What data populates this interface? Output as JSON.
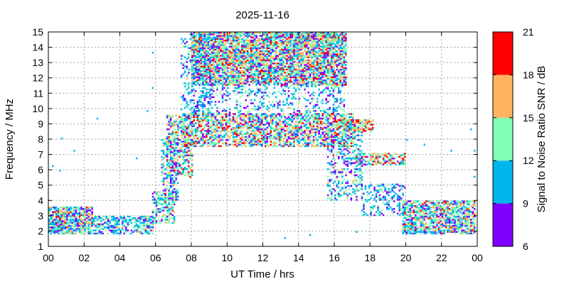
{
  "chart_data": {
    "type": "heatmap",
    "title": "2025-11-16",
    "xlabel": "UT Time / hrs",
    "ylabel": "Frequency / MHz",
    "xlim": [
      0,
      24
    ],
    "ylim": [
      1,
      15
    ],
    "x_ticks": [
      "00",
      "02",
      "04",
      "06",
      "08",
      "10",
      "12",
      "14",
      "16",
      "18",
      "20",
      "22",
      "00"
    ],
    "y_ticks": [
      1,
      2,
      3,
      4,
      5,
      6,
      7,
      8,
      9,
      10,
      11,
      12,
      13,
      14,
      15
    ],
    "grid": true,
    "colorbar": {
      "label": "Signal to Noise Ratio SNR / dB",
      "range": [
        6,
        21
      ],
      "ticks": [
        6,
        9,
        12,
        15,
        18,
        21
      ],
      "bins": [
        {
          "from": 6,
          "to": 9,
          "color": "#8000ff"
        },
        {
          "from": 9,
          "to": 12,
          "color": "#00b4ec"
        },
        {
          "from": 12,
          "to": 15,
          "color": "#80ffb4"
        },
        {
          "from": 15,
          "to": 18,
          "color": "#ffb360"
        },
        {
          "from": 18,
          "to": 21,
          "color": "#ff0000"
        }
      ]
    },
    "regions": [
      {
        "t": [
          0.0,
          2.5
        ],
        "f": [
          1.8,
          3.6
        ],
        "density": 0.85,
        "snr_mean": 12,
        "snr_sd": 3.5
      },
      {
        "t": [
          2.5,
          5.8
        ],
        "f": [
          1.8,
          3.0
        ],
        "density": 0.55,
        "snr_mean": 11,
        "snr_sd": 2.5
      },
      {
        "t": [
          5.8,
          7.0
        ],
        "f": [
          2.5,
          4.5
        ],
        "density": 0.55,
        "snr_mean": 12,
        "snr_sd": 3
      },
      {
        "t": [
          6.3,
          7.2
        ],
        "f": [
          4.0,
          8.0
        ],
        "density": 0.35,
        "snr_mean": 11,
        "snr_sd": 3
      },
      {
        "t": [
          6.6,
          8.0
        ],
        "f": [
          5.5,
          9.5
        ],
        "density": 0.55,
        "snr_mean": 13,
        "snr_sd": 4
      },
      {
        "t": [
          7.5,
          17.0
        ],
        "f": [
          7.5,
          9.6
        ],
        "density": 0.6,
        "snr_mean": 13,
        "snr_sd": 4
      },
      {
        "t": [
          7.4,
          9.0
        ],
        "f": [
          9.5,
          14.8
        ],
        "density": 0.25,
        "snr_mean": 10.5,
        "snr_sd": 2
      },
      {
        "t": [
          8.0,
          16.6
        ],
        "f": [
          11.5,
          14.9
        ],
        "density": 0.8,
        "snr_mean": 13,
        "snr_sd": 4
      },
      {
        "t": [
          8.0,
          16.5
        ],
        "f": [
          9.5,
          11.5
        ],
        "density": 0.25,
        "snr_mean": 10.5,
        "snr_sd": 2
      },
      {
        "t": [
          13.2,
          15.8
        ],
        "f": [
          14.0,
          15.0
        ],
        "density": 0.6,
        "snr_mean": 12,
        "snr_sd": 3
      },
      {
        "t": [
          15.6,
          17.6
        ],
        "f": [
          4.0,
          9.0
        ],
        "density": 0.35,
        "snr_mean": 11,
        "snr_sd": 2.5
      },
      {
        "t": [
          16.6,
          18.2
        ],
        "f": [
          8.5,
          9.2
        ],
        "density": 0.7,
        "snr_mean": 16,
        "snr_sd": 3
      },
      {
        "t": [
          17.2,
          20.0
        ],
        "f": [
          6.3,
          7.0
        ],
        "density": 0.6,
        "snr_mean": 14,
        "snr_sd": 4
      },
      {
        "t": [
          17.5,
          20.0
        ],
        "f": [
          3.0,
          5.0
        ],
        "density": 0.3,
        "snr_mean": 10.5,
        "snr_sd": 2
      },
      {
        "t": [
          19.8,
          24.0
        ],
        "f": [
          1.8,
          4.0
        ],
        "density": 0.75,
        "snr_mean": 12.5,
        "snr_sd": 3.5
      }
    ],
    "sparse_points": [
      {
        "t": 0.2,
        "f": 6.3
      },
      {
        "t": 0.6,
        "f": 6.0
      },
      {
        "t": 0.7,
        "f": 8.1
      },
      {
        "t": 1.4,
        "f": 7.3
      },
      {
        "t": 2.7,
        "f": 9.4
      },
      {
        "t": 4.9,
        "f": 6.8
      },
      {
        "t": 5.5,
        "f": 9.9
      },
      {
        "t": 5.8,
        "f": 13.7
      },
      {
        "t": 5.8,
        "f": 11.4
      },
      {
        "t": 23.6,
        "f": 8.7
      },
      {
        "t": 23.8,
        "f": 7.3
      },
      {
        "t": 23.8,
        "f": 5.6
      },
      {
        "t": 22.5,
        "f": 7.3
      },
      {
        "t": 21.0,
        "f": 7.7
      },
      {
        "t": 20.0,
        "f": 8.0
      },
      {
        "t": 13.2,
        "f": 1.6
      },
      {
        "t": 14.6,
        "f": 1.8
      },
      {
        "t": 17.2,
        "f": 2.0
      }
    ]
  }
}
